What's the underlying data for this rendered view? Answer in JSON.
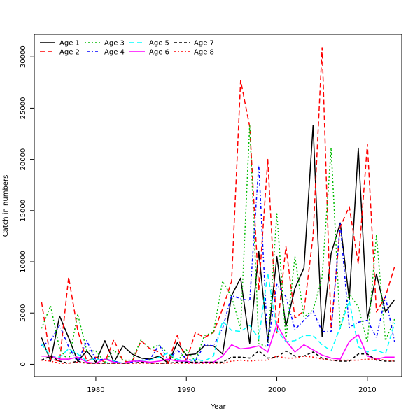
{
  "chart_data": {
    "type": "line",
    "title": "",
    "xlabel": "Year",
    "ylabel": "Catch in numbers",
    "xlim": [
      1973.2,
      2013.8
    ],
    "ylim": [
      -1200,
      32200
    ],
    "x_ticks": [
      1980,
      1990,
      2000,
      2010
    ],
    "x_tick_labels": [
      "1980",
      "1990",
      "2000",
      "2010"
    ],
    "y_ticks": [
      0,
      5000,
      10000,
      15000,
      20000,
      25000,
      30000
    ],
    "y_tick_labels": [
      "0",
      "5000",
      "10000",
      "15000",
      "20000",
      "25000",
      "30000"
    ],
    "legend_position": "top-left",
    "x": [
      1974,
      1975,
      1976,
      1977,
      1978,
      1979,
      1980,
      1981,
      1982,
      1983,
      1984,
      1985,
      1986,
      1987,
      1988,
      1989,
      1990,
      1991,
      1992,
      1993,
      1994,
      1995,
      1996,
      1997,
      1998,
      1999,
      2000,
      2001,
      2002,
      2003,
      2004,
      2005,
      2006,
      2007,
      2008,
      2009,
      2010,
      2011,
      2012,
      2013
    ],
    "series": [
      {
        "name": "Age 1",
        "color": "#000000",
        "dash": "solid",
        "values": [
          2600,
          300,
          4700,
          2600,
          300,
          1300,
          200,
          2300,
          200,
          1800,
          1000,
          600,
          500,
          800,
          100,
          2100,
          900,
          1000,
          1800,
          1800,
          1000,
          6700,
          8400,
          2000,
          11000,
          2200,
          10500,
          3700,
          7400,
          9400,
          23300,
          2700,
          10800,
          13800,
          6300,
          21100,
          4400,
          8800,
          5100,
          6300
        ]
      },
      {
        "name": "Age 2",
        "color": "#ff0000",
        "dash": "long",
        "values": [
          6100,
          500,
          300,
          8500,
          3300,
          300,
          700,
          200,
          2400,
          300,
          200,
          2300,
          1500,
          1200,
          200,
          2800,
          300,
          3100,
          2600,
          3100,
          5400,
          8100,
          27700,
          23200,
          7200,
          20000,
          3000,
          11500,
          4500,
          5200,
          12500,
          30900,
          3400,
          13400,
          15400,
          9800,
          21500,
          5100,
          6600,
          9500
        ]
      },
      {
        "name": "Age 3",
        "color": "#00bb00",
        "dash": "dotted",
        "values": [
          3500,
          5700,
          1500,
          300,
          4900,
          1300,
          1300,
          200,
          1400,
          400,
          400,
          2400,
          1500,
          1900,
          1000,
          300,
          1400,
          300,
          2800,
          3100,
          8100,
          6600,
          3500,
          23400,
          2000,
          1700,
          14700,
          2400,
          10500,
          4600,
          5300,
          8500,
          21100,
          3500,
          6900,
          5600,
          2100,
          12600,
          2300,
          4400
        ]
      },
      {
        "name": "Age 4",
        "color": "#0000ff",
        "dash": "dashdot",
        "values": [
          1800,
          2300,
          3800,
          1700,
          200,
          2300,
          400,
          500,
          300,
          100,
          200,
          400,
          500,
          1900,
          400,
          1400,
          500,
          300,
          1900,
          1800,
          3500,
          6700,
          6400,
          6200,
          19500,
          1800,
          7800,
          6600,
          3400,
          4300,
          5200,
          3200,
          3200,
          13700,
          3600,
          4100,
          4300,
          2600,
          6600,
          2200
        ]
      },
      {
        "name": "Age 5",
        "color": "#00ffff",
        "dash": "long",
        "values": [
          2000,
          800,
          700,
          1500,
          1000,
          300,
          600,
          100,
          300,
          100,
          300,
          400,
          400,
          700,
          1100,
          500,
          200,
          500,
          300,
          800,
          4200,
          3300,
          3200,
          3800,
          2500,
          8900,
          3300,
          2200,
          2300,
          2800,
          2800,
          1900,
          1300,
          3600,
          6200,
          1700,
          1200,
          1400,
          1000,
          4000
        ]
      },
      {
        "name": "Age 6",
        "color": "#ff00ff",
        "dash": "solid",
        "values": [
          800,
          800,
          500,
          500,
          700,
          200,
          100,
          500,
          200,
          100,
          300,
          300,
          200,
          300,
          500,
          300,
          300,
          100,
          200,
          200,
          800,
          1900,
          1500,
          1600,
          1800,
          1200,
          3900,
          2300,
          1200,
          1900,
          1400,
          900,
          600,
          500,
          2200,
          2900,
          800,
          500,
          700,
          700
        ]
      },
      {
        "name": "Age 7",
        "color": "#000000",
        "dash": "dashed",
        "values": [
          400,
          800,
          300,
          100,
          300,
          100,
          100,
          100,
          100,
          100,
          100,
          200,
          100,
          100,
          100,
          200,
          200,
          200,
          200,
          200,
          200,
          700,
          700,
          600,
          1300,
          600,
          700,
          1300,
          800,
          800,
          1200,
          600,
          400,
          300,
          300,
          1000,
          1000,
          400,
          300,
          300
        ]
      },
      {
        "name": "Age 8",
        "color": "#ff0000",
        "dash": "dotted",
        "values": [
          400,
          300,
          100,
          100,
          200,
          100,
          100,
          100,
          100,
          100,
          100,
          100,
          100,
          100,
          100,
          100,
          100,
          100,
          100,
          100,
          100,
          300,
          400,
          300,
          400,
          400,
          800,
          600,
          600,
          800,
          700,
          500,
          400,
          400,
          400,
          400,
          500,
          500,
          400,
          300
        ]
      }
    ]
  }
}
